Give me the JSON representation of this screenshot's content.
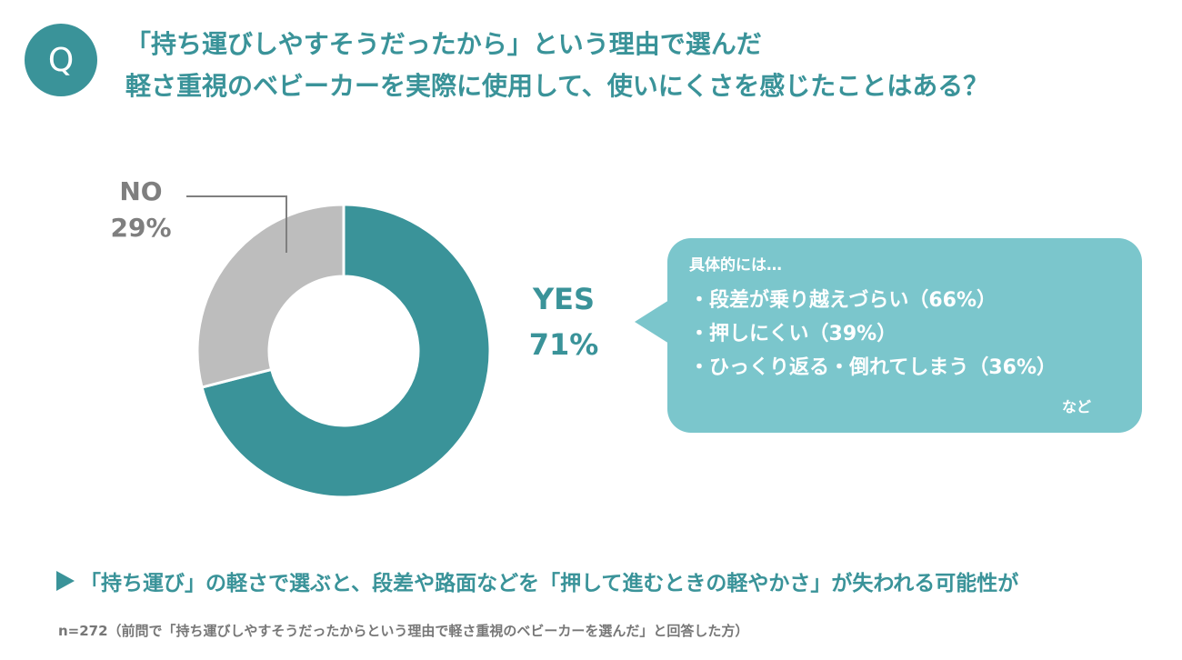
{
  "badge": "Q",
  "question": {
    "line1": "「持ち運びしやすそうだったから」という理由で選んだ",
    "line2": "軽さ重視のベビーカーを実際に使用して、使いにくさを感じたことはある？"
  },
  "chart_data": {
    "type": "pie",
    "style": "donut",
    "categories": [
      "YES",
      "NO"
    ],
    "values": [
      71,
      29
    ],
    "value_labels": [
      "71%",
      "29%"
    ],
    "colors": [
      "#3a9399",
      "#bdbdbd"
    ],
    "text_colors": [
      "#3a9399",
      "#7f7f7f"
    ]
  },
  "callout": {
    "title": "具体的には…",
    "items": [
      "・段差が乗り越えづらい（66%）",
      "・押しにくい（39%）",
      "・ひっくり返る・倒れてしまう（36%）"
    ],
    "etc": "など"
  },
  "conclusion": "「持ち運び」の軽さで選ぶと、段差や路面などを「押して進むときの軽やかさ」が失われる可能性が",
  "footnote": "n=272（前問で「持ち運びしやすそうだったからという理由で軽さ重視のベビーカーを選んだ」と回答した方）"
}
